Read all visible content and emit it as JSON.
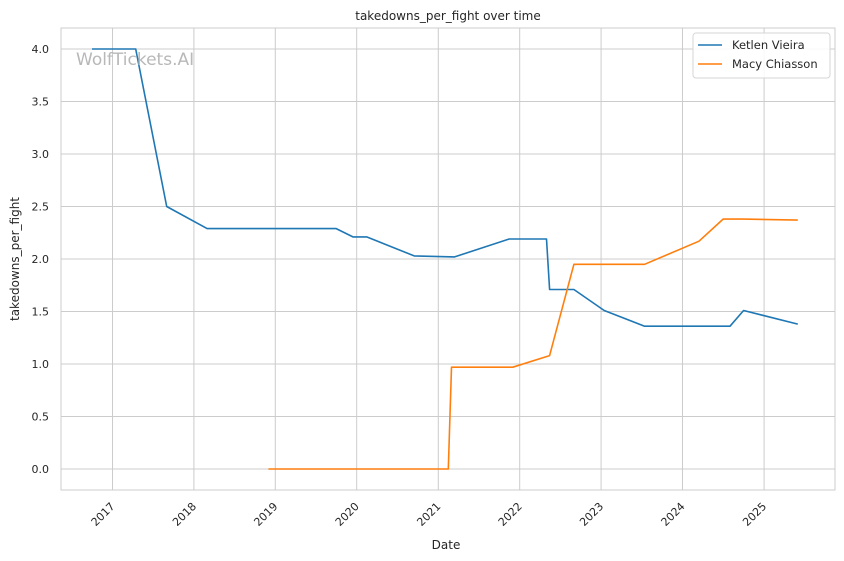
{
  "watermark": "WolfTickets.AI",
  "chart_data": {
    "type": "line",
    "title": "takedowns_per_fight over time",
    "xlabel": "Date",
    "ylabel": "takedowns_per_fight",
    "x_ticks": [
      "2017",
      "2018",
      "2019",
      "2020",
      "2021",
      "2022",
      "2023",
      "2024",
      "2025"
    ],
    "y_ticks": [
      "0.0",
      "0.5",
      "1.0",
      "1.5",
      "2.0",
      "2.5",
      "3.0",
      "3.5",
      "4.0"
    ],
    "xlim": [
      "2016-05-15",
      "2025-11-15"
    ],
    "ylim": [
      -0.2,
      4.2
    ],
    "grid": true,
    "legend_position": "top-right",
    "colors": {
      "Ketlen Vieira": "#1f77b4",
      "Macy Chiasson": "#ff7f0e"
    },
    "series": [
      {
        "name": "Ketlen Vieira",
        "x": [
          "2016-10-01",
          "2017-04-15",
          "2017-09-01",
          "2018-03-01",
          "2019-10-01",
          "2019-12-15",
          "2020-02-15",
          "2020-09-15",
          "2021-03-15",
          "2021-11-15",
          "2022-05-01",
          "2022-05-15",
          "2022-09-01",
          "2023-01-15",
          "2023-07-15",
          "2024-08-01",
          "2024-10-01",
          "2025-06-01"
        ],
        "y": [
          4.0,
          4.0,
          2.5,
          2.29,
          2.29,
          2.21,
          2.21,
          2.03,
          2.02,
          2.19,
          2.19,
          1.71,
          1.71,
          1.51,
          1.36,
          1.36,
          1.51,
          1.38
        ]
      },
      {
        "name": "Macy Chiasson",
        "x": [
          "2018-12-01",
          "2021-02-15",
          "2021-03-01",
          "2021-12-01",
          "2022-05-15",
          "2022-09-01",
          "2023-07-15",
          "2024-03-15",
          "2024-07-01",
          "2024-10-01",
          "2025-06-01"
        ],
        "y": [
          0.0,
          0.0,
          0.97,
          0.97,
          1.08,
          1.95,
          1.95,
          2.17,
          2.38,
          2.38,
          2.37
        ]
      }
    ]
  }
}
